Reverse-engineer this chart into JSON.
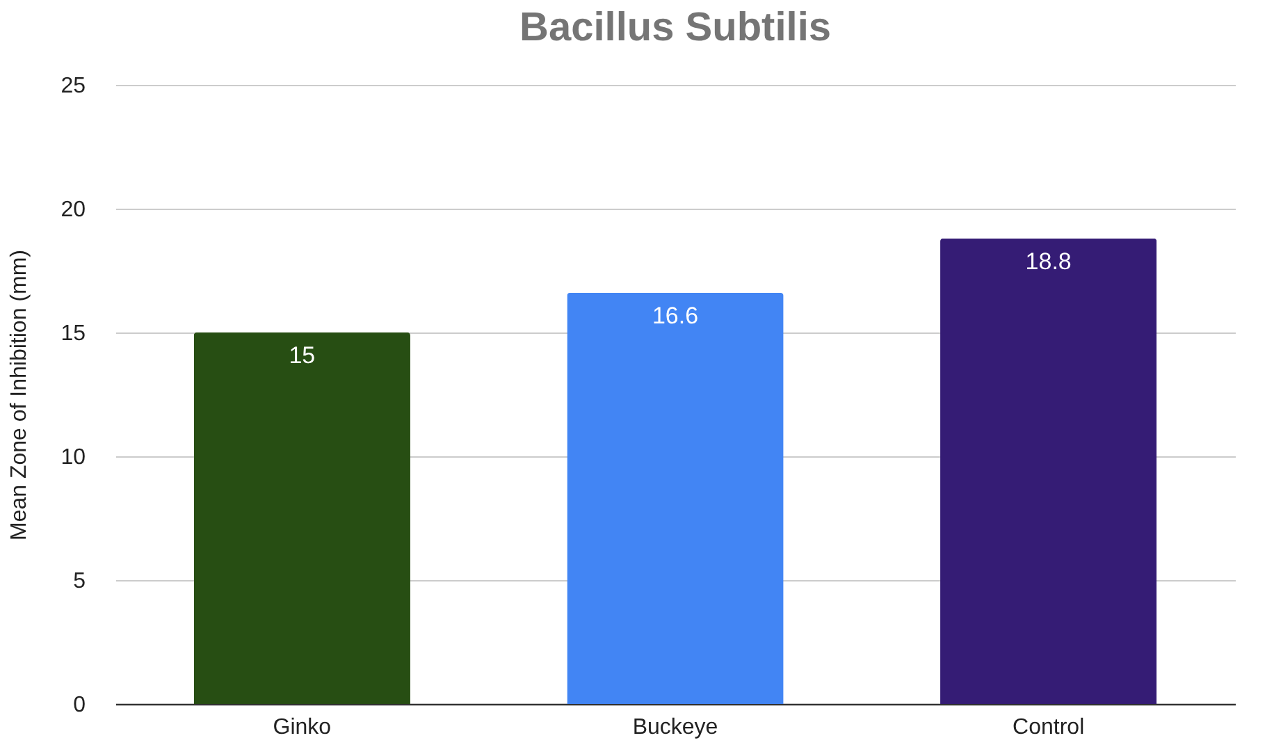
{
  "chart_data": {
    "type": "bar",
    "title": "Bacillus Subtilis",
    "ylabel": "Mean Zone of Inhibition (mm)",
    "categories": [
      "Ginko",
      "Buckeye",
      "Control"
    ],
    "values": [
      15,
      16.6,
      18.8
    ],
    "colors": [
      "#274e13",
      "#4285f4",
      "#351c75"
    ],
    "ylim": [
      0,
      25
    ],
    "yticks": [
      0,
      5,
      10,
      15,
      20,
      25
    ],
    "grid": "y",
    "data_labels": true
  }
}
